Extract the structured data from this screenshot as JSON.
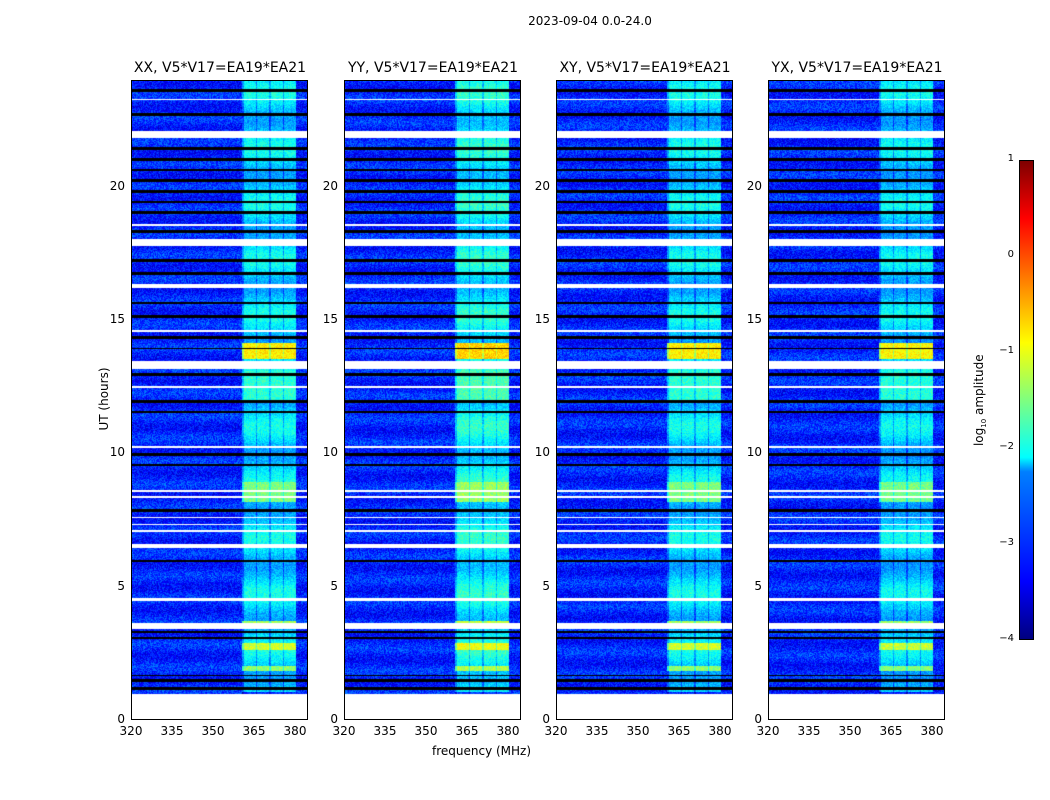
{
  "title": "2023-09-04 0.0-24.0",
  "chart_data": {
    "type": "heatmap",
    "title": "2023-09-04 0.0-24.0",
    "xlabel": "frequency (MHz)",
    "ylabel": "UT (hours)",
    "xlim": [
      320,
      385
    ],
    "ylim": [
      0,
      24
    ],
    "xticks": [
      "320",
      "335",
      "350",
      "365",
      "380"
    ],
    "yticks": [
      "0",
      "5",
      "10",
      "15",
      "20"
    ],
    "panels": [
      {
        "title": "XX, V5*V17=EA19*EA21",
        "gain": 0.0
      },
      {
        "title": "YY, V5*V17=EA19*EA21",
        "gain": 0.15
      },
      {
        "title": "XY, V5*V17=EA19*EA21",
        "gain": 0.0
      },
      {
        "title": "YX, V5*V17=EA19*EA21",
        "gain": -0.05
      }
    ],
    "colorbar": {
      "label": "log10 amplitude",
      "label_main": "log",
      "label_sub": "10",
      "label_rest": " amplitude",
      "range": [
        -4,
        1
      ],
      "ticks": [
        "1",
        "0",
        "−1",
        "−2",
        "−3",
        "−4"
      ],
      "colormap": "jet"
    },
    "background_level": -3.2,
    "active_band_mhz": [
      361,
      381
    ],
    "active_band_level": -2.3,
    "flagged_hours": [
      [
        0,
        0.95
      ],
      [
        3.4,
        3.6
      ],
      [
        4.45,
        4.55
      ],
      [
        6.45,
        6.6
      ],
      [
        7.05,
        7.1
      ],
      [
        7.3,
        7.35
      ],
      [
        7.55,
        7.6
      ],
      [
        8.3,
        8.38
      ],
      [
        8.55,
        8.6
      ],
      [
        10.2,
        10.27
      ],
      [
        12.45,
        12.52
      ],
      [
        13.15,
        13.45
      ],
      [
        14.55,
        14.65
      ],
      [
        16.2,
        16.35
      ],
      [
        17.8,
        18.05
      ],
      [
        18.55,
        18.62
      ],
      [
        21.85,
        22.12
      ],
      [
        23.28,
        23.33
      ]
    ],
    "dark_hours": [
      [
        1.1,
        1.2
      ],
      [
        1.4,
        1.5
      ],
      [
        1.6,
        1.65
      ],
      [
        3.0,
        3.1
      ],
      [
        3.25,
        3.3
      ],
      [
        5.9,
        6.0
      ],
      [
        7.8,
        7.9
      ],
      [
        9.5,
        9.6
      ],
      [
        9.9,
        10.0
      ],
      [
        11.5,
        11.6
      ],
      [
        11.9,
        12.0
      ],
      [
        12.9,
        13.0
      ],
      [
        13.9,
        13.95
      ],
      [
        14.3,
        14.4
      ],
      [
        15.1,
        15.2
      ],
      [
        15.6,
        15.7
      ],
      [
        16.7,
        16.8
      ],
      [
        17.2,
        17.3
      ],
      [
        18.3,
        18.4
      ],
      [
        19.0,
        19.1
      ],
      [
        19.4,
        19.5
      ],
      [
        19.8,
        19.9
      ],
      [
        20.2,
        20.3
      ],
      [
        20.6,
        20.7
      ],
      [
        21.0,
        21.1
      ],
      [
        21.4,
        21.5
      ],
      [
        22.7,
        22.8
      ],
      [
        23.6,
        23.7
      ]
    ],
    "bright_events": [
      {
        "hours": [
          13.55,
          14.15
        ],
        "level": -0.8
      },
      {
        "hours": [
          8.15,
          8.9
        ],
        "level": -1.5
      },
      {
        "hours": [
          2.6,
          2.85
        ],
        "level": -1.1
      },
      {
        "hours": [
          1.8,
          2.0
        ],
        "level": -1.4
      },
      {
        "hours": [
          11.9,
          13.1
        ],
        "level": -1.9
      },
      {
        "hours": [
          3.5,
          3.7
        ],
        "level": -1.3
      }
    ]
  }
}
